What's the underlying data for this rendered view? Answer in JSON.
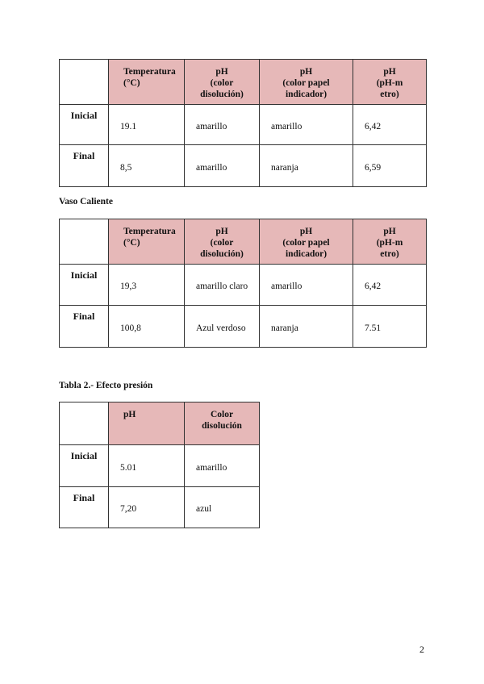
{
  "colors": {
    "header_fill": "#e6b8b8",
    "border": "#333333"
  },
  "tables": [
    {
      "headers": [
        "",
        "Temperatura (°C)",
        "pH (color disolución)",
        "pH (color papel indicador)",
        "pH (pH-metro)"
      ],
      "header_lines": [
        [
          ""
        ],
        [
          "Temperatura",
          "(°C)"
        ],
        [
          "pH",
          "(color",
          "disolución)"
        ],
        [
          "pH",
          "(color papel",
          "indicador)"
        ],
        [
          "pH",
          "(pH-m",
          "etro)"
        ]
      ],
      "rows": [
        [
          "Inicial",
          "19.1",
          "amarillo",
          "amarillo",
          "6,42"
        ],
        [
          "Final",
          "8,5",
          "amarillo",
          "naranja",
          "6,59"
        ]
      ]
    },
    {
      "caption": "Vaso Caliente",
      "headers": [
        "",
        "Temperatura (°C)",
        "pH (color disolución)",
        "pH (color papel indicador)",
        "pH (pH-metro)"
      ],
      "header_lines": [
        [
          ""
        ],
        [
          "Temperatura",
          "(°C)"
        ],
        [
          "pH",
          "(color",
          "disolución)"
        ],
        [
          "pH",
          "(color papel",
          "indicador)"
        ],
        [
          "pH",
          "(pH-m",
          "etro)"
        ]
      ],
      "rows": [
        [
          "Inicial",
          "19,3",
          "amarillo claro",
          "amarillo",
          "6,42"
        ],
        [
          "Final",
          "100,8",
          "Azul verdoso",
          "naranja",
          "7.51"
        ]
      ]
    },
    {
      "caption": "Tabla 2.- Efecto presión",
      "headers": [
        "",
        "pH",
        "Color disolución"
      ],
      "header_lines": [
        [
          ""
        ],
        [
          "pH"
        ],
        [
          "Color",
          "disolución"
        ]
      ],
      "rows": [
        [
          "Inicial",
          "5.01",
          "amarillo"
        ],
        [
          "Final",
          "7,20",
          "azul"
        ]
      ]
    }
  ],
  "page_number": "2"
}
